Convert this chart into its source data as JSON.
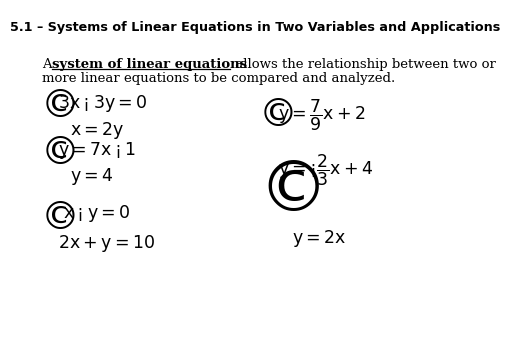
{
  "title": "5.1 – Systems of Linear Equations in Two Variables and Applications",
  "title_bg": "#29b5e8",
  "title_color": "#000000",
  "body_bg": "#ffffff",
  "font_size": 9.5,
  "eq_font_size": 12.5
}
